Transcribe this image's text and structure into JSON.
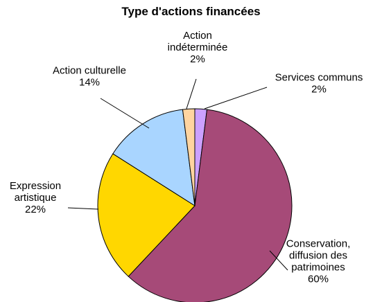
{
  "chart_data": {
    "type": "pie",
    "title": "Type d'actions financées",
    "slices": [
      {
        "label_lines": [
          "Services communs"
        ],
        "value": 2,
        "value_label": "2%",
        "color": "#CCA0FF"
      },
      {
        "label_lines": [
          "Conservation,",
          "diffusion des",
          "patrimoines"
        ],
        "value": 60,
        "value_label": "60%",
        "color": "#A64A78"
      },
      {
        "label_lines": [
          "Expression",
          "artistique"
        ],
        "value": 22,
        "value_label": "22%",
        "color": "#FFD700"
      },
      {
        "label_lines": [
          "Action culturelle"
        ],
        "value": 14,
        "value_label": "14%",
        "color": "#A9D5FF"
      },
      {
        "label_lines": [
          "Action",
          "indéterminée"
        ],
        "value": 2,
        "value_label": "2%",
        "color": "#FFD4A0"
      }
    ]
  }
}
